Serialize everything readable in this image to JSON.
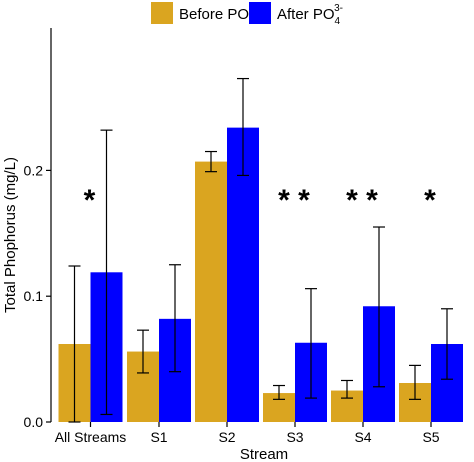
{
  "chart_data": {
    "type": "bar",
    "title": "",
    "xlabel": "Stream",
    "ylabel": "Total Phophorus (mg/L)",
    "categories": [
      "All Streams",
      "S1",
      "S2",
      "S3",
      "S4",
      "S5"
    ],
    "ylim": [
      0,
      0.27
    ],
    "yticks": [
      0.0,
      0.1,
      0.2
    ],
    "ytick_labels": [
      "0.0",
      "0.1",
      "0.2"
    ],
    "grid": false,
    "legend_position": "top",
    "series": [
      {
        "name": "Before PO43-",
        "legend_text": "Before PO",
        "legend_sub": "4",
        "legend_sup": "3-",
        "color": "#DAA520",
        "values": [
          0.062,
          0.056,
          0.207,
          0.023,
          0.025,
          0.031
        ],
        "err_low": [
          0.0,
          0.039,
          0.199,
          0.018,
          0.019,
          0.018
        ],
        "err_high": [
          0.124,
          0.073,
          0.215,
          0.029,
          0.033,
          0.045
        ]
      },
      {
        "name": "After PO43-",
        "legend_text": "After PO",
        "legend_sub": "4",
        "legend_sup": "3-",
        "color": "#0000FF",
        "values": [
          0.119,
          0.082,
          0.234,
          0.063,
          0.092,
          0.062
        ],
        "err_low": [
          0.006,
          0.04,
          0.196,
          0.019,
          0.028,
          0.034
        ],
        "err_high": [
          0.232,
          0.125,
          0.273,
          0.106,
          0.155,
          0.09
        ]
      }
    ],
    "significance": [
      "*",
      "",
      "",
      "* *",
      "* *",
      "*"
    ]
  }
}
